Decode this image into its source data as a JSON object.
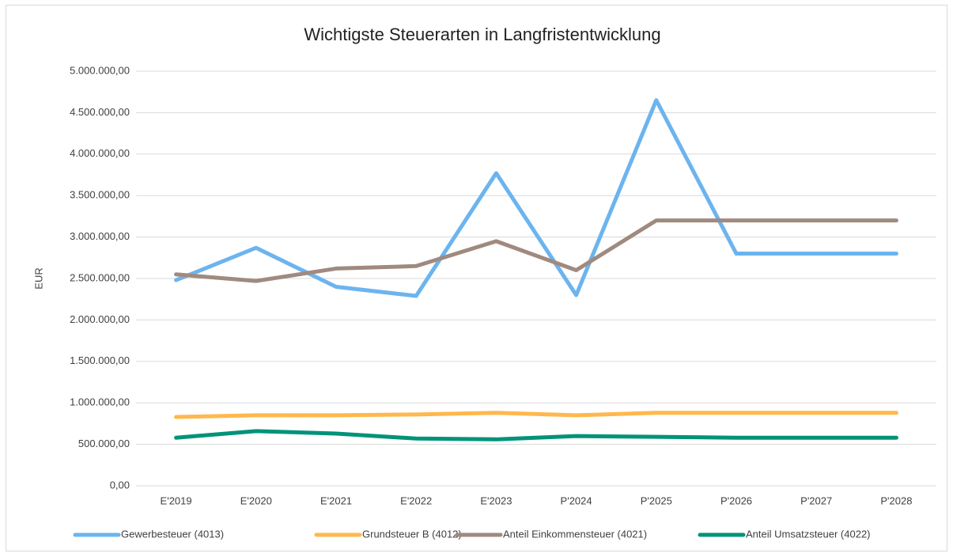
{
  "chart_data": {
    "type": "line",
    "title": "Wichtigste Steuerarten in Langfristentwicklung",
    "y_label": "EUR",
    "categories": [
      "E'2019",
      "E'2020",
      "E'2021",
      "E'2022",
      "E'2023",
      "P'2024",
      "P'2025",
      "P'2026",
      "P'2027",
      "P'2028"
    ],
    "series": [
      {
        "name": "Gewerbesteuer (4013)",
        "color": "#6cb4ee",
        "values": [
          2480000,
          2870000,
          2400000,
          2290000,
          3770000,
          2300000,
          4650000,
          2800000,
          2800000,
          2800000
        ]
      },
      {
        "name": "Grundsteuer B (4012)",
        "color": "#ffb84d",
        "values": [
          830000,
          850000,
          850000,
          860000,
          880000,
          850000,
          880000,
          880000,
          880000,
          880000
        ]
      },
      {
        "name": "Anteil Einkommensteuer (4021)",
        "color": "#a08a80",
        "values": [
          2550000,
          2470000,
          2620000,
          2650000,
          2950000,
          2600000,
          3200000,
          3200000,
          3200000,
          3200000
        ]
      },
      {
        "name": "Anteil Umsatzsteuer (4022)",
        "color": "#00937a",
        "values": [
          580000,
          660000,
          630000,
          570000,
          560000,
          600000,
          590000,
          580000,
          580000,
          580000
        ]
      }
    ],
    "ylim": [
      0,
      5000000
    ],
    "yticks": [
      {
        "value": 0,
        "label": "0,00"
      },
      {
        "value": 500000,
        "label": "500.000,00"
      },
      {
        "value": 1000000,
        "label": "1.000.000,00"
      },
      {
        "value": 1500000,
        "label": "1.500.000,00"
      },
      {
        "value": 2000000,
        "label": "2.000.000,00"
      },
      {
        "value": 2500000,
        "label": "2.500.000,00"
      },
      {
        "value": 3000000,
        "label": "3.000.000,00"
      },
      {
        "value": 3500000,
        "label": "3.500.000,00"
      },
      {
        "value": 4000000,
        "label": "4.000.000,00"
      },
      {
        "value": 4500000,
        "label": "4.500.000,00"
      },
      {
        "value": 5000000,
        "label": "5.000.000,00"
      }
    ],
    "grid": true,
    "legend": "bottom"
  }
}
